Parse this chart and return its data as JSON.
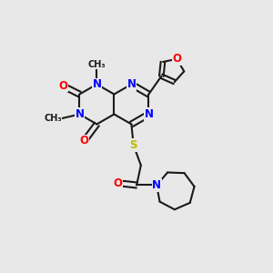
{
  "background_color": "#e8e8e8",
  "bond_color": "#1a1a1a",
  "N_color": "#0000ff",
  "O_color": "#ff0000",
  "S_color": "#bbbb00",
  "figsize": [
    3.0,
    3.0
  ],
  "dpi": 100,
  "xlim": [
    0.0,
    1.0
  ],
  "ylim": [
    0.0,
    1.0
  ]
}
